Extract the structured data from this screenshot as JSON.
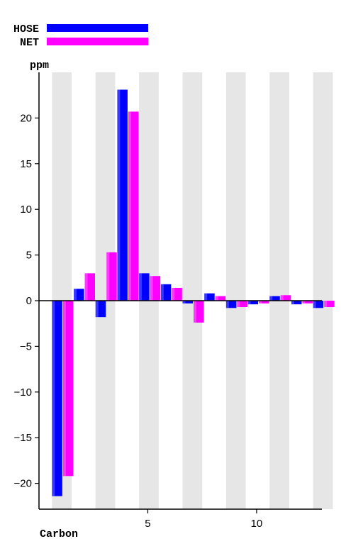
{
  "chart_data": {
    "type": "bar",
    "xlabel": "Carbon",
    "ylabel": "ppm",
    "ylim": [
      -22.9,
      25
    ],
    "xlim": [
      0.5,
      13.5
    ],
    "yticks": [
      -20,
      -15,
      -10,
      -5,
      0,
      5,
      10,
      15,
      20
    ],
    "xticks": [
      5,
      10
    ],
    "legend": "top-left",
    "shaded_columns": "alternating",
    "x": [
      1,
      2,
      3,
      4,
      5,
      6,
      7,
      8,
      9,
      10,
      11,
      12,
      13
    ],
    "series": [
      {
        "name": "HOSE",
        "color": "#0000ff",
        "values": [
          -21.4,
          1.3,
          -1.8,
          23.1,
          3.0,
          1.8,
          -0.3,
          0.8,
          -0.8,
          -0.4,
          0.5,
          -0.4,
          -0.8
        ]
      },
      {
        "name": "NET",
        "color": "#ff00ff",
        "values": [
          -19.2,
          3.0,
          5.3,
          20.7,
          2.7,
          1.4,
          -2.4,
          0.5,
          -0.7,
          -0.3,
          0.6,
          -0.3,
          -0.7
        ]
      }
    ]
  }
}
